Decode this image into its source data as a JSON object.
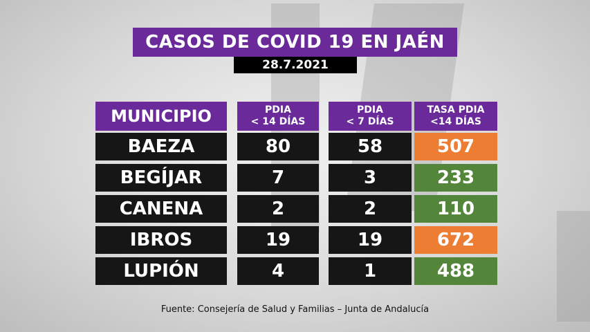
{
  "title": "CASOS DE COVID 19 EN JAÉN",
  "date": "28.7.2021",
  "headers": {
    "municipio": "MUNICIPIO",
    "pdia14_l1": "PDIA",
    "pdia14_l2": "< 14 DÍAS",
    "pdia7_l1": "PDIA",
    "pdia7_l2": "< 7 DÍAS",
    "tasa_l1": "TASA PDIA",
    "tasa_l2": "<14 DÍAS"
  },
  "rows": [
    {
      "municipio": "BAEZA",
      "pdia14": "80",
      "pdia7": "58",
      "tasa": "507",
      "tasa_color": "#ec7d32"
    },
    {
      "municipio": "BEGÍJAR",
      "pdia14": "7",
      "pdia7": "3",
      "tasa": "233",
      "tasa_color": "#53863a"
    },
    {
      "municipio": "CANENA",
      "pdia14": "2",
      "pdia7": "2",
      "tasa": "110",
      "tasa_color": "#53863a"
    },
    {
      "municipio": "IBROS",
      "pdia14": "19",
      "pdia7": "19",
      "tasa": "672",
      "tasa_color": "#ec7d32"
    },
    {
      "municipio": "LUPIÓN",
      "pdia14": "4",
      "pdia7": "1",
      "tasa": "488",
      "tasa_color": "#53863a"
    }
  ],
  "source": "Fuente: Consejería de Salud y Familias – Junta de Andalucía",
  "colors": {
    "purple": "#6a2a9a",
    "orange": "#ec7d32",
    "green": "#53863a",
    "black": "#161616"
  }
}
